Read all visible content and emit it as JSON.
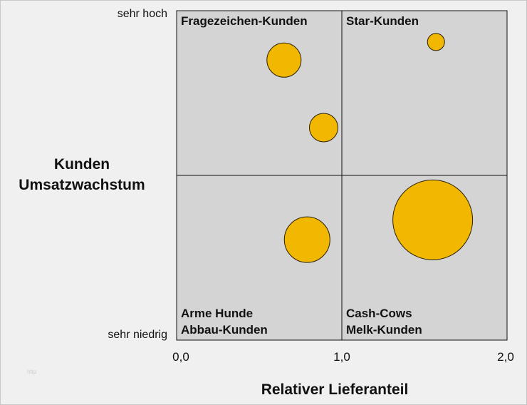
{
  "chart_data": {
    "type": "scatter",
    "subtype": "bubble-portfolio-matrix",
    "xlabel": "Relativer Lieferanteil",
    "ylabel": [
      "Kunden",
      "Umsatzwachstum"
    ],
    "x_ticks": [
      {
        "value": 0,
        "label": "0,0"
      },
      {
        "value": 1,
        "label": "1,0"
      },
      {
        "value": 2,
        "label": "2,0"
      }
    ],
    "y_extremes": {
      "top": "sehr hoch",
      "bottom": "sehr niedrig"
    },
    "xlim": [
      0,
      2
    ],
    "ylim": [
      0,
      1
    ],
    "quadrants": [
      {
        "id": "top-left",
        "lines": [
          "Fragezeichen-Kunden"
        ]
      },
      {
        "id": "top-right",
        "lines": [
          "Star-Kunden"
        ]
      },
      {
        "id": "bottom-left",
        "lines": [
          "Arme Hunde",
          "Abbau-Kunden"
        ]
      },
      {
        "id": "bottom-right",
        "lines": [
          "Cash-Cows",
          "Melk-Kunden"
        ]
      }
    ],
    "points": [
      {
        "x": 0.65,
        "y": 0.85,
        "size": 24
      },
      {
        "x": 0.89,
        "y": 0.645,
        "size": 20
      },
      {
        "x": 1.57,
        "y": 0.905,
        "size": 12
      },
      {
        "x": 0.79,
        "y": 0.305,
        "size": 32
      },
      {
        "x": 1.55,
        "y": 0.365,
        "size": 56
      }
    ],
    "colors": {
      "bubble": "#f2b700",
      "bubble_stroke": "#2a2000",
      "plot_bg": "#d4d4d4",
      "divider": "#111111"
    },
    "grid": false,
    "legend": "none"
  },
  "watermark": "http"
}
